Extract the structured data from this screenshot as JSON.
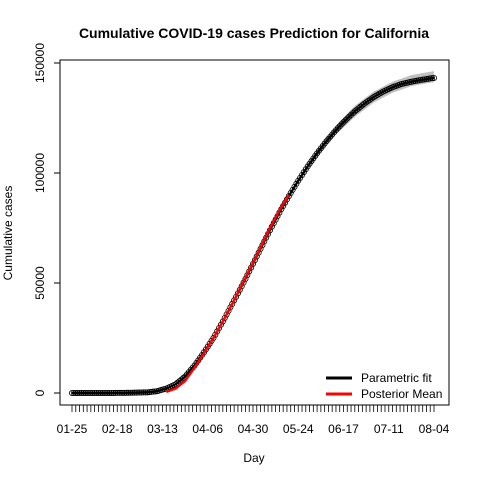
{
  "chart_data": {
    "type": "line",
    "title": "Cumulative COVID-19 cases Prediction for California",
    "xlabel": "Day",
    "ylabel": "Cumulative cases",
    "x_tick_labels": [
      "01-25",
      "02-18",
      "03-13",
      "04-06",
      "04-30",
      "05-24",
      "06-17",
      "07-11",
      "08-04"
    ],
    "x_tick_days": [
      0,
      24,
      48,
      72,
      96,
      120,
      144,
      168,
      192
    ],
    "x_range_days": [
      0,
      192
    ],
    "ylim": [
      0,
      150000
    ],
    "y_ticks": [
      0,
      50000,
      100000,
      150000
    ],
    "y_tick_labels": [
      "0",
      "50000",
      "100000",
      "150000"
    ],
    "grid": false,
    "legend_position": "bottom-right",
    "series": [
      {
        "name": "Parametric fit",
        "color": "#000000",
        "style": "line-with-circles",
        "days": [
          0,
          10,
          20,
          30,
          40,
          45,
          50,
          55,
          60,
          65,
          70,
          75,
          80,
          85,
          90,
          95,
          100,
          105,
          110,
          115,
          120,
          125,
          130,
          135,
          140,
          145,
          150,
          155,
          160,
          165,
          170,
          175,
          180,
          185,
          190,
          192
        ],
        "values": [
          0,
          0,
          0,
          100,
          300,
          800,
          2000,
          4000,
          7500,
          12500,
          18500,
          25000,
          32500,
          40500,
          48500,
          57000,
          65500,
          74000,
          82000,
          89500,
          96500,
          103000,
          109000,
          114500,
          119500,
          124000,
          128000,
          131500,
          134500,
          137000,
          139000,
          140500,
          141500,
          142300,
          143000,
          143200
        ]
      },
      {
        "name": "Posterior Mean",
        "color": "#ff0000",
        "style": "line",
        "days": [
          50,
          55,
          60,
          65,
          70,
          75,
          80,
          85,
          90,
          95,
          100,
          105,
          110,
          115
        ],
        "values": [
          500,
          2000,
          5500,
          11500,
          18000,
          25000,
          32500,
          40500,
          49000,
          57500,
          66000,
          75000,
          83000,
          90000
        ]
      },
      {
        "name": "",
        "color": "#c0c0c0",
        "style": "band",
        "days": [
          100,
          110,
          120,
          130,
          140,
          150,
          160,
          170,
          180,
          190,
          192
        ],
        "lower": [
          65000,
          81000,
          95500,
          107500,
          117500,
          125500,
          132000,
          136500,
          139500,
          141000,
          141200
        ],
        "upper": [
          66000,
          83000,
          97500,
          110500,
          121500,
          130500,
          137000,
          141500,
          144500,
          146000,
          146300
        ]
      }
    ]
  }
}
